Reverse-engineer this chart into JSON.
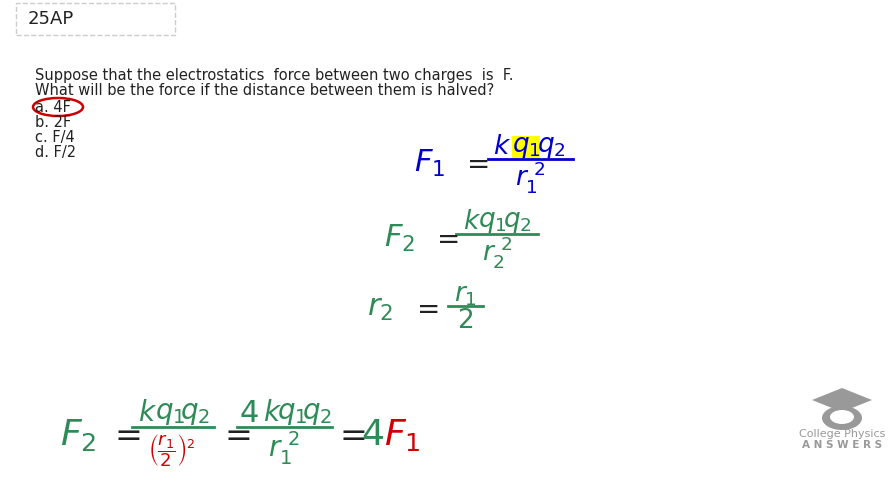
{
  "bg_color": "#ffffff",
  "title_box_text": "25AP",
  "title_box_color": "#ffffff",
  "title_box_border": "#cccccc",
  "question_text_line1": "Suppose that the electrostatics  force between two charges  is  F.",
  "question_text_line2": "What will be the force if the distance between them is halved?",
  "options": [
    "a. 4F",
    "b. 2F",
    "c. F/4",
    "d. F/2"
  ],
  "answer_option_index": 0,
  "answer_circle_color": "#cc0000",
  "text_color": "#222222",
  "green_color": "#2e8b57",
  "blue_color": "#0000cc",
  "red_color": "#cc0000",
  "gray_color": "#888888",
  "yellow_highlight": "#ffff00",
  "logo_color": "#999999",
  "logo_text1": "College Physics",
  "logo_text2": "A N S W E R S"
}
